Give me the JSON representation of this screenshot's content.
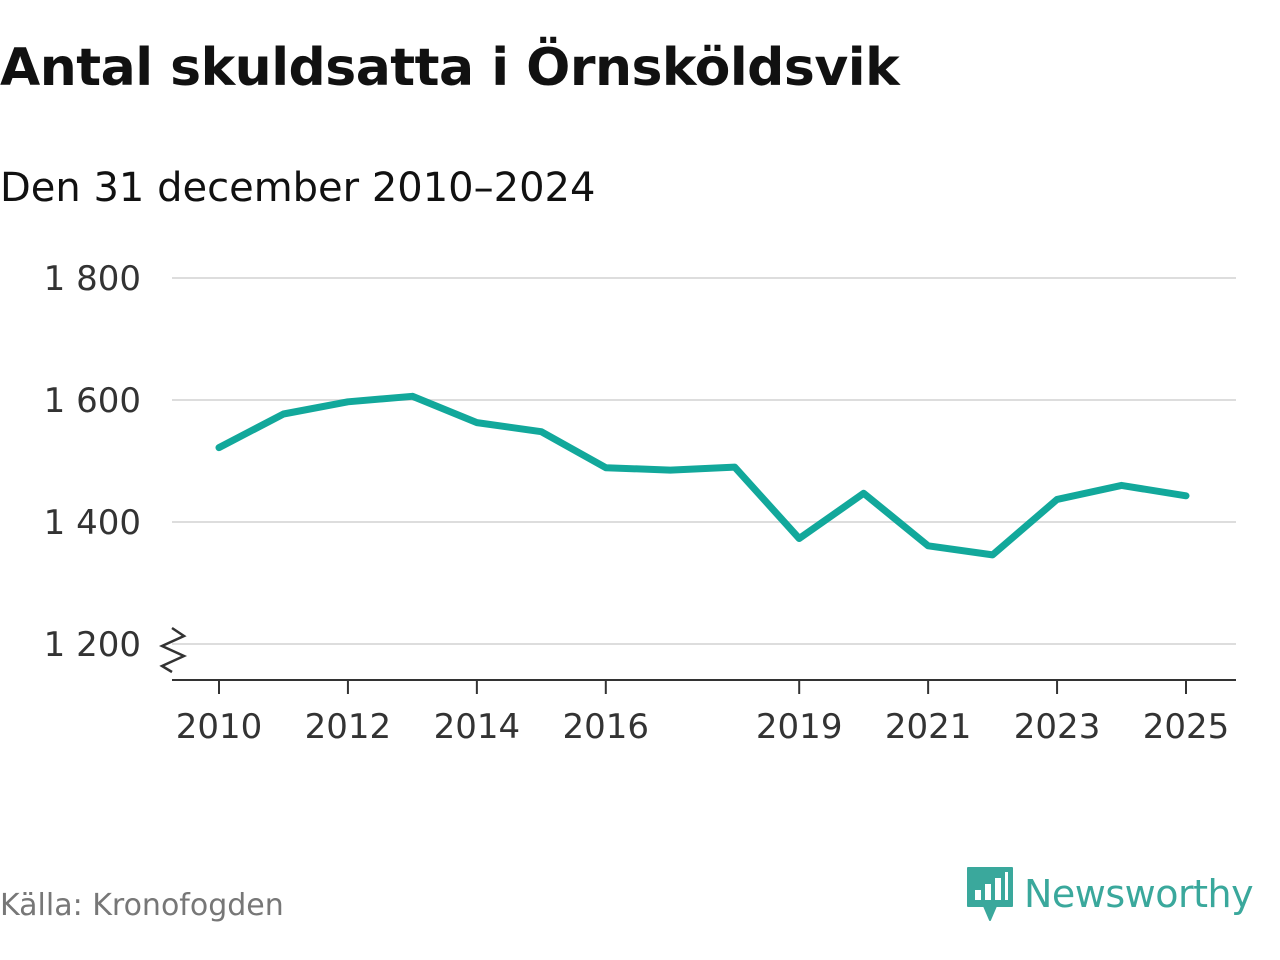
{
  "chart_data": {
    "type": "line",
    "title": "Antal skuldsatta i Örnsköldsvik",
    "subtitle": "Den 31 december 2010–2024",
    "xlabel": "",
    "ylabel": "",
    "x": [
      2010,
      2011,
      2012,
      2013,
      2014,
      2015,
      2016,
      2017,
      2018,
      2019,
      2020,
      2021,
      2022,
      2023,
      2024,
      2025
    ],
    "values": [
      1522,
      1577,
      1597,
      1606,
      1563,
      1548,
      1489,
      1485,
      1490,
      1373,
      1447,
      1361,
      1346,
      1437,
      1460,
      1443
    ],
    "xlim": [
      2009.6,
      2025.8
    ],
    "ylim": [
      1140,
      1800
    ],
    "y_ticks": [
      1200,
      1400,
      1600,
      1800
    ],
    "y_tick_labels": [
      "1 200",
      "1 400",
      "1 600",
      "1 800"
    ],
    "x_ticks": [
      2010,
      2012,
      2014,
      2016,
      2019,
      2021,
      2023,
      2025
    ],
    "x_tick_labels": [
      "2010",
      "2012",
      "2014",
      "2016",
      "2019",
      "2021",
      "2023",
      "2025"
    ],
    "y_axis_break": true,
    "grid": true,
    "line_color": "#12a89b"
  },
  "footer": {
    "source": "Källa: Kronofogden",
    "brand": "Newsworthy",
    "brand_icon": "newsworthy-logo-icon",
    "brand_color": "#3aa89c"
  }
}
